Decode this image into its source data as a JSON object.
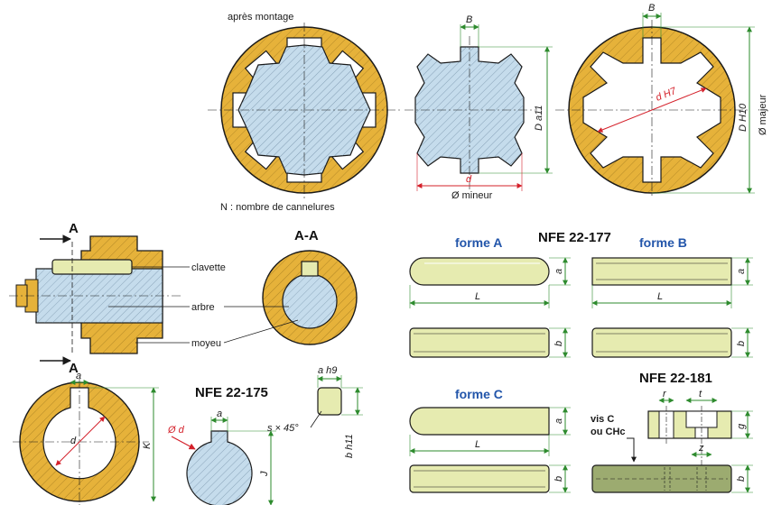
{
  "labels": {
    "apres_montage": "après montage",
    "cannelures": "N : nombre de cannelures",
    "mineur": "Ø mineur",
    "majeur": "Ø majeur",
    "clavette": "clavette",
    "arbre": "arbre",
    "moyeu": "moyeu",
    "section_a": "A",
    "section_aa": "A-A",
    "vis": "vis C",
    "vis2": "ou CHc"
  },
  "standards": {
    "nfe177": "NFE 22-177",
    "nfe175": "NFE 22-175",
    "nfe181": "NFE 22-181"
  },
  "formes": {
    "a": "forme A",
    "b": "forme B",
    "c": "forme C"
  },
  "dims": {
    "B": "B",
    "d": "d",
    "Da11": "D a11",
    "dH7": "d H7",
    "DH10": "D H10",
    "a": "a",
    "L": "L",
    "b": "b",
    "K": "K",
    "J": "J",
    "phi_d": "Ø d",
    "ah9": "a h9",
    "bh11": "b h11",
    "s45": "s × 45°",
    "r": "r",
    "t": "t",
    "g": "g",
    "z": "z"
  },
  "colors": {
    "hub": "#e6b23a",
    "shaft": "#c5dcec",
    "key": "#e6ebb0",
    "dim": "#2e8b2e",
    "red": "#d4202a",
    "outline": "#1a1a1a"
  }
}
